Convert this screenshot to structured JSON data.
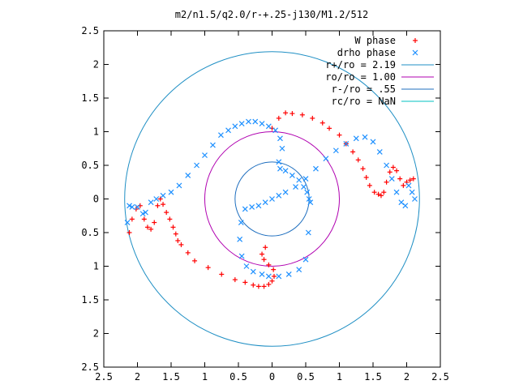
{
  "chart_data": {
    "type": "scatter",
    "title": "m2/n1.5/q2.0/r-+.25-j130/M1.2/512",
    "xlabel": "",
    "ylabel": "",
    "xlim": [
      -2.5,
      2.5
    ],
    "ylim": [
      -2.5,
      2.5
    ],
    "x_tick_values": [
      -2.5,
      -2,
      -1.5,
      -1,
      -0.5,
      0,
      0.5,
      1,
      1.5,
      2,
      2.5
    ],
    "x_tick_labels": [
      "2.5",
      "2",
      "1.5",
      "1",
      "0.5",
      "0",
      "0.5",
      "1",
      "1.5",
      "2",
      "2.5"
    ],
    "y_tick_values": [
      2.5,
      2,
      1.5,
      1,
      0.5,
      0,
      -0.5,
      -1,
      -1.5,
      -2,
      -2.5
    ],
    "y_tick_labels": [
      "2.5",
      "2",
      "1.5",
      "1",
      "0.5",
      "0",
      "0.5",
      "1",
      "1.5",
      "2",
      "2.5"
    ],
    "grid": false,
    "legend_position": "top-right",
    "colors": {
      "w_phase": "#ff0000",
      "drho_phase": "#1e90ff",
      "r_plus": "#1f8fc4",
      "r_o": "#b000b0",
      "r_minus": "#1f6fbf",
      "r_c": "#00c0c0"
    },
    "series": [
      {
        "name": "W phase",
        "marker": "+",
        "x": [
          -2.12,
          -2.08,
          -2.02,
          -1.96,
          -1.9,
          -1.85,
          -1.8,
          -1.75,
          -1.7,
          -1.66,
          -1.62,
          -1.57,
          -1.52,
          -1.47,
          -1.43,
          -1.4,
          -1.35,
          -1.25,
          -1.15,
          -0.95,
          -0.75,
          -0.55,
          -0.4,
          -0.28,
          -0.2,
          -0.12,
          -0.05,
          0.0,
          0.03,
          0.02,
          -0.05,
          -0.12,
          -0.15,
          -0.1,
          0.0,
          0.1,
          0.2,
          0.3,
          0.45,
          0.6,
          0.75,
          0.85,
          1.0,
          1.1,
          1.2,
          1.28,
          1.35,
          1.4,
          1.45,
          1.52,
          1.58,
          1.62,
          1.66,
          1.7,
          1.75,
          1.8,
          1.85,
          1.9,
          1.95,
          2.0,
          2.05,
          2.1
        ],
        "y": [
          -0.5,
          -0.3,
          -0.15,
          -0.1,
          -0.3,
          -0.42,
          -0.45,
          -0.35,
          -0.1,
          0.0,
          -0.08,
          -0.2,
          -0.3,
          -0.42,
          -0.52,
          -0.62,
          -0.68,
          -0.8,
          -0.92,
          -1.02,
          -1.12,
          -1.2,
          -1.24,
          -1.28,
          -1.3,
          -1.3,
          -1.27,
          -1.22,
          -1.15,
          -1.05,
          -0.98,
          -0.9,
          -0.82,
          -0.72,
          1.05,
          1.2,
          1.28,
          1.27,
          1.25,
          1.2,
          1.13,
          1.05,
          0.95,
          0.82,
          0.7,
          0.58,
          0.45,
          0.32,
          0.2,
          0.1,
          0.07,
          0.05,
          0.1,
          0.25,
          0.4,
          0.47,
          0.42,
          0.3,
          0.2,
          0.25,
          0.28,
          0.3
        ]
      },
      {
        "name": "drho phase",
        "marker": "x",
        "x": [
          -2.15,
          -2.12,
          -2.08,
          -2.0,
          -1.92,
          -1.88,
          -1.8,
          -1.72,
          -1.62,
          -1.5,
          -1.38,
          -1.25,
          -1.12,
          -1.0,
          -0.88,
          -0.76,
          -0.65,
          -0.55,
          -0.45,
          -0.35,
          -0.25,
          -0.15,
          -0.05,
          0.05,
          0.12,
          0.15,
          0.1,
          0.12,
          0.2,
          0.3,
          0.4,
          0.47,
          0.52,
          0.55,
          0.57,
          0.54,
          0.5,
          0.4,
          0.25,
          0.1,
          -0.05,
          -0.15,
          -0.28,
          -0.38,
          -0.45,
          -0.48,
          -0.46,
          -0.4,
          -0.3,
          -0.2,
          -0.1,
          0.0,
          0.1,
          0.2,
          0.35,
          0.5,
          0.65,
          0.8,
          0.95,
          1.1,
          1.25,
          1.38,
          1.5,
          1.6,
          1.7,
          1.78,
          1.85,
          1.92,
          1.98,
          2.03,
          2.08,
          2.12
        ],
        "y": [
          -0.35,
          -0.1,
          -0.12,
          -0.12,
          -0.22,
          -0.2,
          -0.05,
          0.0,
          0.05,
          0.1,
          0.2,
          0.35,
          0.5,
          0.65,
          0.8,
          0.95,
          1.02,
          1.08,
          1.12,
          1.15,
          1.15,
          1.12,
          1.08,
          1.02,
          0.9,
          0.75,
          0.55,
          0.45,
          0.42,
          0.35,
          0.28,
          0.18,
          0.1,
          0.0,
          -0.05,
          -0.5,
          -0.9,
          -1.05,
          -1.12,
          -1.15,
          -1.15,
          -1.12,
          -1.08,
          -1.0,
          -0.85,
          -0.6,
          -0.35,
          -0.15,
          -0.12,
          -0.1,
          -0.05,
          0.0,
          0.05,
          0.1,
          0.18,
          0.3,
          0.45,
          0.6,
          0.72,
          0.82,
          0.9,
          0.92,
          0.85,
          0.7,
          0.5,
          0.3,
          0.1,
          -0.05,
          -0.1,
          0.2,
          0.1,
          0.0
        ]
      }
    ],
    "circles": [
      {
        "name": "r+/ro = 2.19",
        "radius": 2.19,
        "color_key": "r_plus"
      },
      {
        "name": "ro/ro = 1.00",
        "radius": 1.0,
        "color_key": "r_o"
      },
      {
        "name": "r-/ro = .55",
        "radius": 0.55,
        "color_key": "r_minus"
      },
      {
        "name": "rc/ro = NaN",
        "radius": null,
        "color_key": "r_c"
      }
    ]
  }
}
